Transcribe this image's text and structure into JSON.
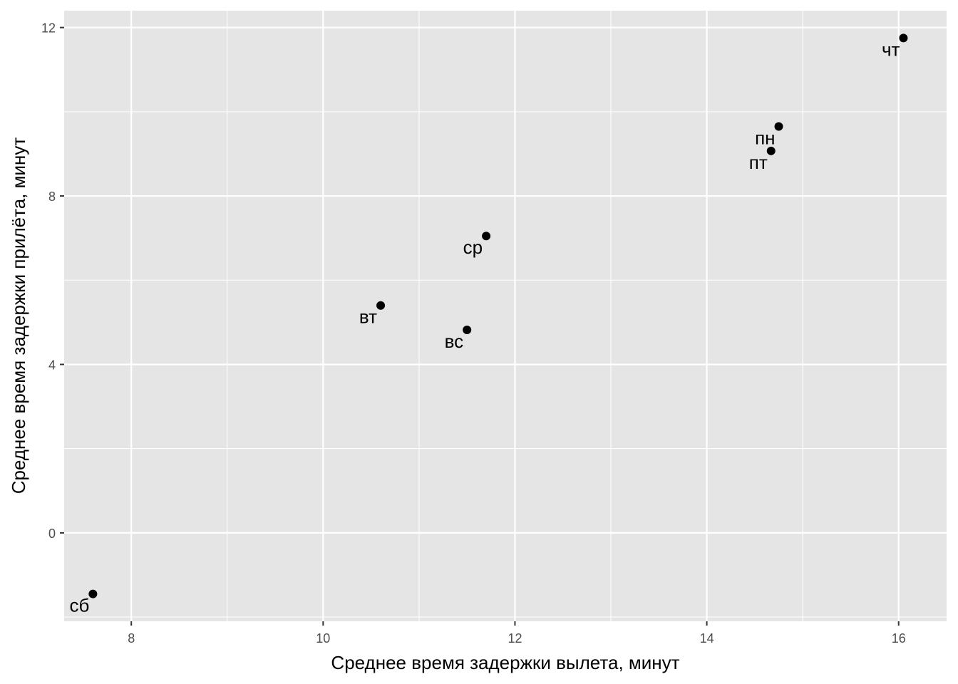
{
  "chart_data": {
    "type": "scatter",
    "title": "",
    "xlabel": "Среднее время задержки вылета, минут",
    "ylabel": "Среднее время задержки прилёта, минут",
    "xlim": [
      7.3,
      16.5
    ],
    "ylim": [
      -2.1,
      12.4
    ],
    "x_ticks": [
      8,
      10,
      12,
      14,
      16
    ],
    "y_ticks": [
      0,
      4,
      8,
      12
    ],
    "grid": true,
    "panel_background": "#e5e5e5",
    "grid_color": "#ffffff",
    "point_color": "#000000",
    "points": [
      {
        "label": "сб",
        "x": 7.6,
        "y": -1.45
      },
      {
        "label": "вт",
        "x": 10.6,
        "y": 5.4
      },
      {
        "label": "вс",
        "x": 11.5,
        "y": 4.82
      },
      {
        "label": "ср",
        "x": 11.7,
        "y": 7.05
      },
      {
        "label": "пт",
        "x": 14.67,
        "y": 9.07
      },
      {
        "label": "пн",
        "x": 14.75,
        "y": 9.65
      },
      {
        "label": "чт",
        "x": 16.05,
        "y": 11.75
      }
    ]
  }
}
